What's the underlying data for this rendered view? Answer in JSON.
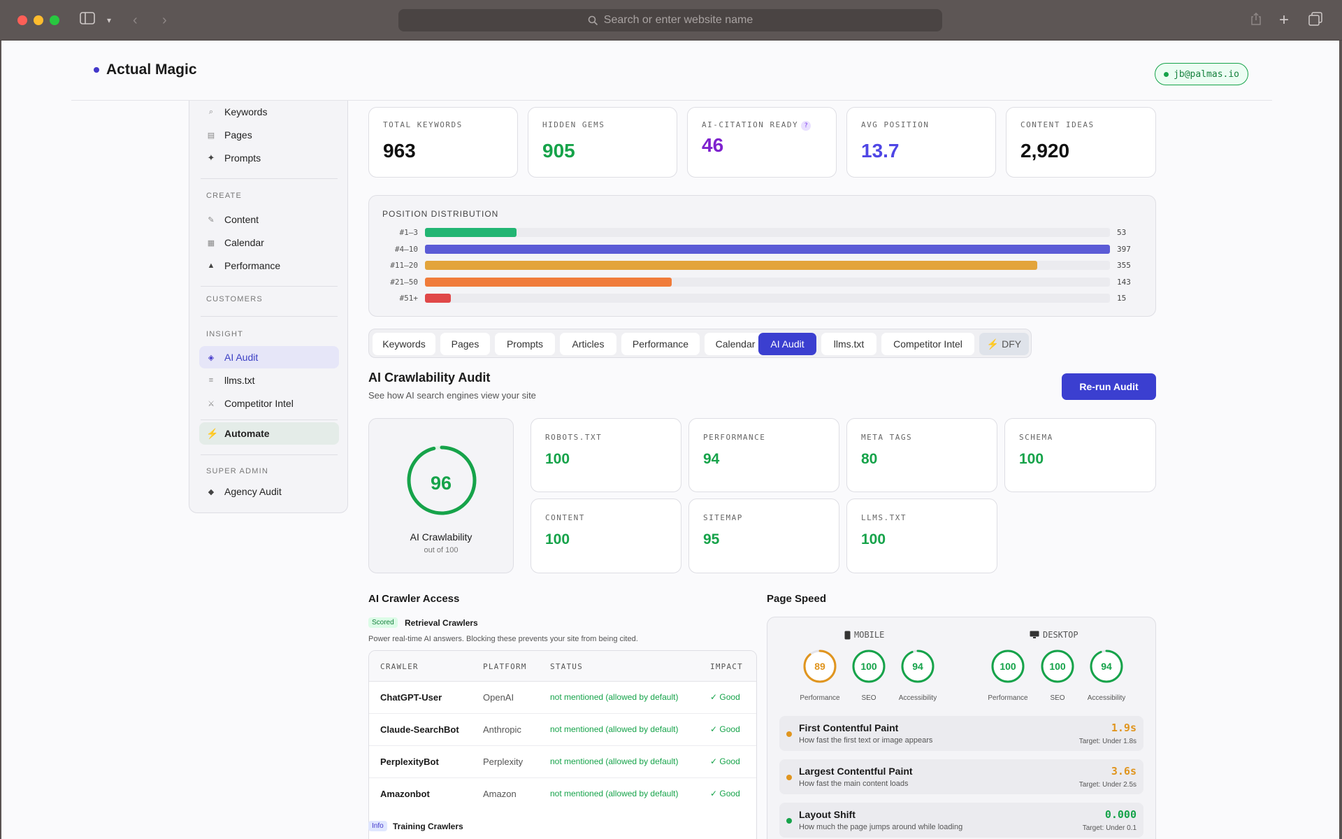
{
  "browser": {
    "url_placeholder": "Search or enter website name"
  },
  "header": {
    "brand": "Actual Magic",
    "user_email": "jb@palmas.io"
  },
  "sidebar": {
    "items_top": [
      {
        "label": "Keywords",
        "icon": "search-icon"
      },
      {
        "label": "Pages",
        "icon": "page-icon"
      },
      {
        "label": "Prompts",
        "icon": "sparkle-icon"
      }
    ],
    "create_heading": "CREATE",
    "create_items": [
      {
        "label": "Content",
        "icon": "pencil-icon"
      },
      {
        "label": "Calendar",
        "icon": "calendar-icon"
      },
      {
        "label": "Performance",
        "icon": "triangle-icon"
      }
    ],
    "customers_heading": "CUSTOMERS",
    "insight_heading": "INSIGHT",
    "insight_items": [
      {
        "label": "AI Audit",
        "icon": "diamond-icon"
      },
      {
        "label": "llms.txt",
        "icon": "list-icon"
      },
      {
        "label": "Competitor Intel",
        "icon": "cross-swords-icon"
      }
    ],
    "automate": {
      "label": "Automate",
      "icon": "lightning-icon"
    },
    "super_admin_heading": "SUPER ADMIN",
    "super_admin_items": [
      {
        "label": "Agency Audit",
        "icon": "diamond-small-icon"
      }
    ]
  },
  "stats": [
    {
      "label": "TOTAL KEYWORDS",
      "value": "963",
      "color": "#111111"
    },
    {
      "label": "HIDDEN GEMS",
      "value": "905",
      "color": "#16a34a"
    },
    {
      "label": "AI-CITATION READY",
      "value": "46",
      "color": "#7e22ce",
      "help": "?"
    },
    {
      "label": "AVG POSITION",
      "value": "13.7",
      "color": "#4f46e5"
    },
    {
      "label": "CONTENT IDEAS",
      "value": "2,920",
      "color": "#111111"
    }
  ],
  "position_distribution": {
    "title": "POSITION DISTRIBUTION",
    "max": 397,
    "rows": [
      {
        "label": "#1–3",
        "value": 53,
        "count": "53",
        "color": "#22b573"
      },
      {
        "label": "#4–10",
        "value": 397,
        "count": "397",
        "color": "#5b5bd6"
      },
      {
        "label": "#11–20",
        "value": 355,
        "count": "355",
        "color": "#e3a43b"
      },
      {
        "label": "#21–50",
        "value": 143,
        "count": "143",
        "color": "#f07c3a"
      },
      {
        "label": "#51+",
        "value": 15,
        "count": "15",
        "color": "#e04848"
      }
    ]
  },
  "tabs": [
    "Keywords",
    "Pages",
    "Prompts",
    "Articles",
    "Performance",
    "Calendar",
    "AI Audit",
    "llms.txt",
    "Competitor Intel",
    "⚡ DFY"
  ],
  "audit": {
    "title": "AI Crawlability Audit",
    "subtitle": "See how AI search engines view your site",
    "rerun_label": "Re-run Audit",
    "score": "96",
    "score_fraction": 0.96,
    "score_label": "AI Crawlability",
    "score_sub": "out of 100",
    "checks": [
      {
        "label": "ROBOTS.TXT",
        "value": "100"
      },
      {
        "label": "PERFORMANCE",
        "value": "94"
      },
      {
        "label": "META TAGS",
        "value": "80"
      },
      {
        "label": "SCHEMA",
        "value": "100"
      },
      {
        "label": "CONTENT",
        "value": "100"
      },
      {
        "label": "SITEMAP",
        "value": "95"
      },
      {
        "label": "LLMS.TXT",
        "value": "100"
      }
    ]
  },
  "crawler_access": {
    "title": "AI Crawler Access",
    "scored_badge": "Scored",
    "retrieval_title": "Retrieval Crawlers",
    "retrieval_desc": "Power real-time AI answers. Blocking these prevents your site from being cited.",
    "columns": [
      "CRAWLER",
      "PLATFORM",
      "STATUS",
      "IMPACT"
    ],
    "rows": [
      {
        "crawler": "ChatGPT-User",
        "platform": "OpenAI",
        "status": "not mentioned (allowed by default)",
        "impact": "✓ Good"
      },
      {
        "crawler": "Claude-SearchBot",
        "platform": "Anthropic",
        "status": "not mentioned (allowed by default)",
        "impact": "✓ Good"
      },
      {
        "crawler": "PerplexityBot",
        "platform": "Perplexity",
        "status": "not mentioned (allowed by default)",
        "impact": "✓ Good"
      },
      {
        "crawler": "Amazonbot",
        "platform": "Amazon",
        "status": "not mentioned (allowed by default)",
        "impact": "✓ Good"
      }
    ],
    "info_badge": "Info",
    "training_title": "Training Crawlers"
  },
  "page_speed": {
    "title": "Page Speed",
    "mobile_label": "MOBILE",
    "desktop_label": "DESKTOP",
    "mobile": [
      {
        "label": "Performance",
        "value": "89",
        "fraction": 0.89,
        "color": "#e0951f"
      },
      {
        "label": "SEO",
        "value": "100",
        "fraction": 1.0,
        "color": "#16a34a"
      },
      {
        "label": "Accessibility",
        "value": "94",
        "fraction": 0.94,
        "color": "#16a34a"
      }
    ],
    "desktop": [
      {
        "label": "Performance",
        "value": "100",
        "fraction": 1.0,
        "color": "#16a34a"
      },
      {
        "label": "SEO",
        "value": "100",
        "fraction": 1.0,
        "color": "#16a34a"
      },
      {
        "label": "Accessibility",
        "value": "94",
        "fraction": 0.94,
        "color": "#16a34a"
      }
    ],
    "metrics": [
      {
        "title": "First Contentful Paint",
        "desc": "How fast the first text or image appears",
        "value": "1.9s",
        "target": "Target: Under 1.8s",
        "color": "#e0951f"
      },
      {
        "title": "Largest Contentful Paint",
        "desc": "How fast the main content loads",
        "value": "3.6s",
        "target": "Target: Under 2.5s",
        "color": "#e0951f"
      },
      {
        "title": "Layout Shift",
        "desc": "How much the page jumps around while loading",
        "value": "0.000",
        "target": "Target: Under 0.1",
        "color": "#16a34a"
      }
    ]
  }
}
